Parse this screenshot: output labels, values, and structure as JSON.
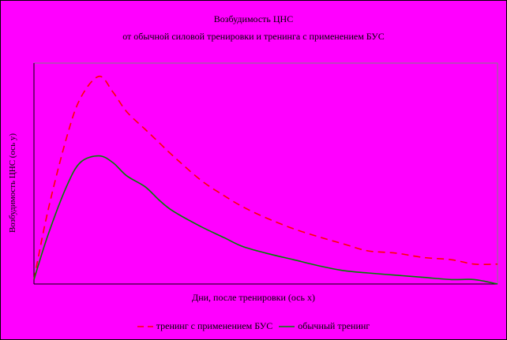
{
  "chart_data": {
    "type": "line",
    "title": "Возбудимость ЦНС",
    "subtitle": "от обычной силовой тренировки и тренинга с применением БУС",
    "xlabel": "Дни, после тренировки (ось x)",
    "ylabel": "Возбудимость ЦНС (ось y)",
    "grid": false,
    "legend_position": "bottom",
    "xlim": [
      0,
      100
    ],
    "ylim": [
      0,
      100
    ],
    "x": [
      0,
      3,
      7,
      10,
      14,
      17,
      20,
      24,
      27,
      30,
      36,
      41,
      45,
      50,
      56,
      62,
      67,
      72,
      78,
      84,
      90,
      95,
      100
    ],
    "series": [
      {
        "name": "тренинг с применением БУС",
        "color": "#ff0000",
        "style": "dashed",
        "values": [
          2,
          33,
          66,
          84,
          94,
          87,
          78,
          70,
          64,
          58,
          47,
          40,
          35,
          30,
          25,
          21,
          18,
          15,
          14,
          12,
          11,
          9,
          9
        ]
      },
      {
        "name": "обычный тренинг",
        "color": "#008000",
        "style": "solid",
        "values": [
          2,
          22,
          44,
          55,
          58,
          55,
          49,
          44,
          38,
          33,
          26,
          21,
          17,
          14,
          11,
          8,
          6,
          5,
          4,
          3,
          2,
          2,
          0
        ]
      }
    ]
  }
}
